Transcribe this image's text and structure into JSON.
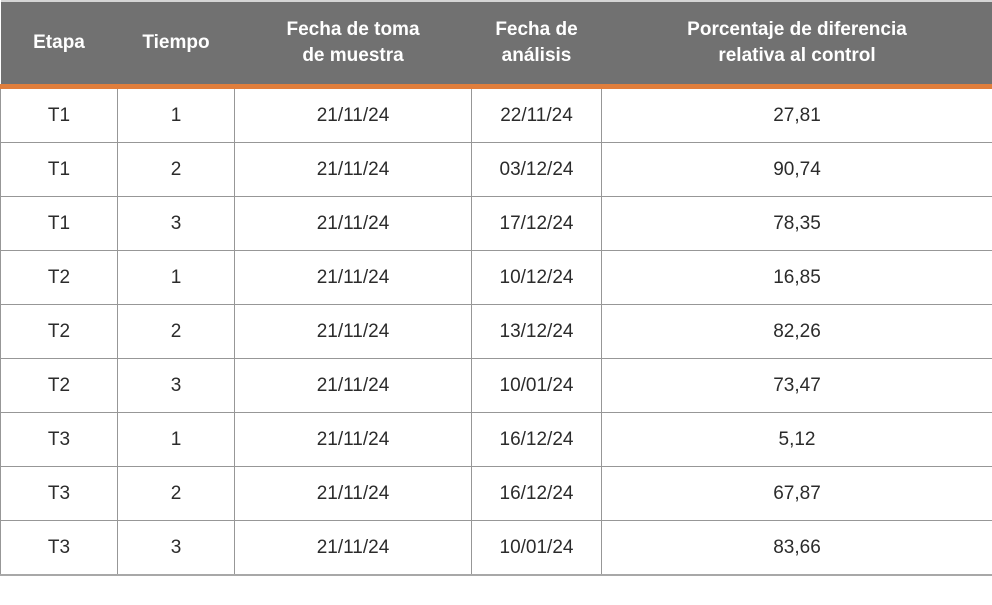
{
  "colors": {
    "header_bg": "#717171",
    "header_text": "#ffffff",
    "accent": "#E07E3C",
    "grid_border": "#979797",
    "outer_top_border": "#d5d5d5",
    "outer_bottom_border": "#a8a8a8",
    "body_text": "#2b2b2b"
  },
  "table": {
    "columns": [
      {
        "id": "etapa",
        "label": "Etapa"
      },
      {
        "id": "tiempo",
        "label": "Tiempo"
      },
      {
        "id": "fecha_toma",
        "label": "Fecha de toma\nde muestra"
      },
      {
        "id": "fecha_analisis",
        "label": "Fecha de\nanálisis"
      },
      {
        "id": "porcentaje",
        "label": "Porcentaje de diferencia\nrelativa al control"
      }
    ],
    "rows": [
      {
        "etapa": "T1",
        "tiempo": "1",
        "fecha_toma": "21/11/24",
        "fecha_analisis": "22/11/24",
        "porcentaje": "27,81"
      },
      {
        "etapa": "T1",
        "tiempo": "2",
        "fecha_toma": "21/11/24",
        "fecha_analisis": "03/12/24",
        "porcentaje": "90,74"
      },
      {
        "etapa": "T1",
        "tiempo": "3",
        "fecha_toma": "21/11/24",
        "fecha_analisis": "17/12/24",
        "porcentaje": "78,35"
      },
      {
        "etapa": "T2",
        "tiempo": "1",
        "fecha_toma": "21/11/24",
        "fecha_analisis": "10/12/24",
        "porcentaje": "16,85"
      },
      {
        "etapa": "T2",
        "tiempo": "2",
        "fecha_toma": "21/11/24",
        "fecha_analisis": "13/12/24",
        "porcentaje": "82,26"
      },
      {
        "etapa": "T2",
        "tiempo": "3",
        "fecha_toma": "21/11/24",
        "fecha_analisis": "10/01/24",
        "porcentaje": "73,47"
      },
      {
        "etapa": "T3",
        "tiempo": "1",
        "fecha_toma": "21/11/24",
        "fecha_analisis": "16/12/24",
        "porcentaje": "5,12"
      },
      {
        "etapa": "T3",
        "tiempo": "2",
        "fecha_toma": "21/11/24",
        "fecha_analisis": "16/12/24",
        "porcentaje": "67,87"
      },
      {
        "etapa": "T3",
        "tiempo": "3",
        "fecha_toma": "21/11/24",
        "fecha_analisis": "10/01/24",
        "porcentaje": "83,66"
      }
    ]
  },
  "chart_data": {
    "type": "table",
    "title": "",
    "columns": [
      "Etapa",
      "Tiempo",
      "Fecha de toma de muestra",
      "Fecha de análisis",
      "Porcentaje de diferencia relativa al control"
    ],
    "rows": [
      [
        "T1",
        1,
        "21/11/24",
        "22/11/24",
        27.81
      ],
      [
        "T1",
        2,
        "21/11/24",
        "03/12/24",
        90.74
      ],
      [
        "T1",
        3,
        "21/11/24",
        "17/12/24",
        78.35
      ],
      [
        "T2",
        1,
        "21/11/24",
        "10/12/24",
        16.85
      ],
      [
        "T2",
        2,
        "21/11/24",
        "13/12/24",
        82.26
      ],
      [
        "T2",
        3,
        "21/11/24",
        "10/01/24",
        73.47
      ],
      [
        "T3",
        1,
        "21/11/24",
        "16/12/24",
        5.12
      ],
      [
        "T3",
        2,
        "21/11/24",
        "16/12/24",
        67.87
      ],
      [
        "T3",
        3,
        "21/11/24",
        "10/01/24",
        83.66
      ]
    ]
  }
}
